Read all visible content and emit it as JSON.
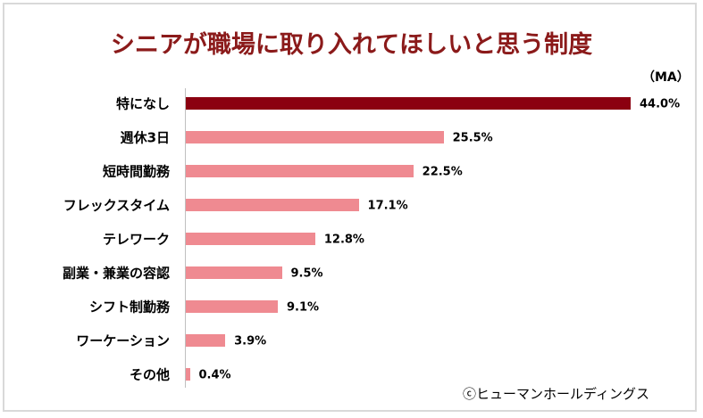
{
  "chart_data": {
    "type": "bar",
    "orientation": "horizontal",
    "title": "シニアが職場に取り入れてほしいと思う制度",
    "unit_note": "（MA）",
    "categories": [
      "特になし",
      "週休3日",
      "短時間勤務",
      "フレックスタイム",
      "テレワーク",
      "副業・兼業の容認",
      "シフト制勤務",
      "ワーケーション",
      "その他"
    ],
    "values": [
      44.0,
      25.5,
      22.5,
      17.1,
      12.8,
      9.5,
      9.1,
      3.9,
      0.4
    ],
    "value_labels": [
      "44.0%",
      "25.5%",
      "22.5%",
      "17.1%",
      "12.8%",
      "9.5%",
      "9.1%",
      "3.9%",
      "0.4%"
    ],
    "xlim": [
      0,
      44
    ],
    "grid": false,
    "colors": {
      "highlight": "#8b0010",
      "default": "#ef8a91"
    },
    "highlight_index": 0
  },
  "credit": "ⓒヒューマンホールディングス"
}
